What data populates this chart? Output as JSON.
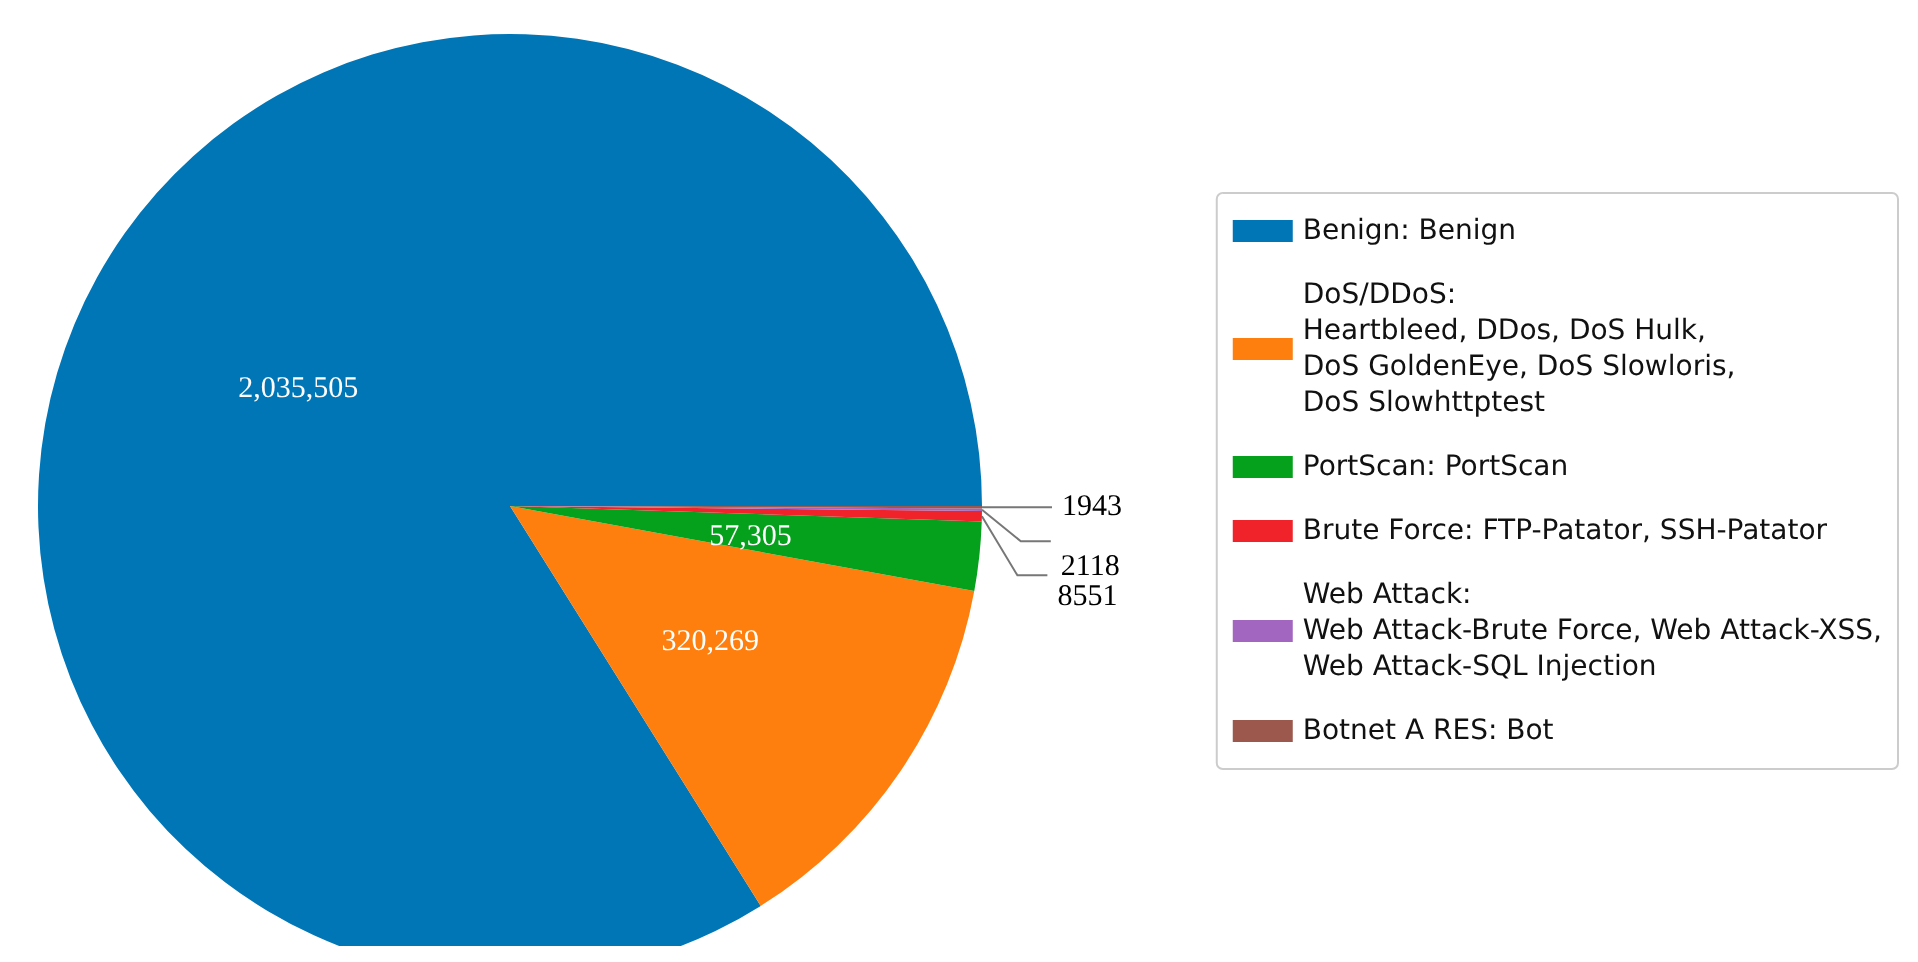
{
  "chart_data": {
    "type": "pie",
    "categories": [
      "Benign: Benign",
      "DoS/DDoS:\nHeartbleed, DDos, DoS Hulk,\nDoS GoldenEye, DoS Slowloris,\nDoS Slowhttptest",
      "PortScan: PortScan",
      "Brute Force: FTP-Patator, SSH-Patator",
      "Web Attack:\nWeb Attack-Brute Force, Web Attack-XSS,\nWeb Attack-SQL Injection",
      "Botnet A RES: Bot"
    ],
    "values": [
      2035505,
      320269,
      57305,
      8551,
      2118,
      1943
    ],
    "value_labels": [
      "2,035,505",
      "320,269",
      "57,305",
      "8551",
      "2118",
      "1943"
    ],
    "colors": [
      "#0076b6",
      "#ff7f0e",
      "#06a11c",
      "#f0232a",
      "#a266c0",
      "#9c584d"
    ],
    "legend": "right"
  }
}
